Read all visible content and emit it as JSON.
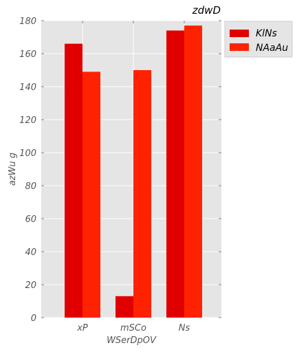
{
  "chart_data": {
    "type": "bar",
    "title": "zdwD",
    "xlabel": "WSerDpOV",
    "ylabel": "azWu  g",
    "categories": [
      "xP",
      "mSCo",
      "Ns"
    ],
    "series": [
      {
        "name": "KlNs",
        "values": [
          166,
          13,
          174
        ],
        "color": "#e00000"
      },
      {
        "name": "NAaAu",
        "values": [
          149,
          150,
          177
        ],
        "color": "#ff2200"
      }
    ],
    "ylim": [
      0,
      180
    ],
    "yticks": [
      0,
      20,
      40,
      60,
      80,
      100,
      120,
      140,
      160,
      180
    ],
    "grid": true,
    "legend_position": "outside-top-right",
    "background_color": "#e5e5e5",
    "grid_color": "#ffffff"
  }
}
